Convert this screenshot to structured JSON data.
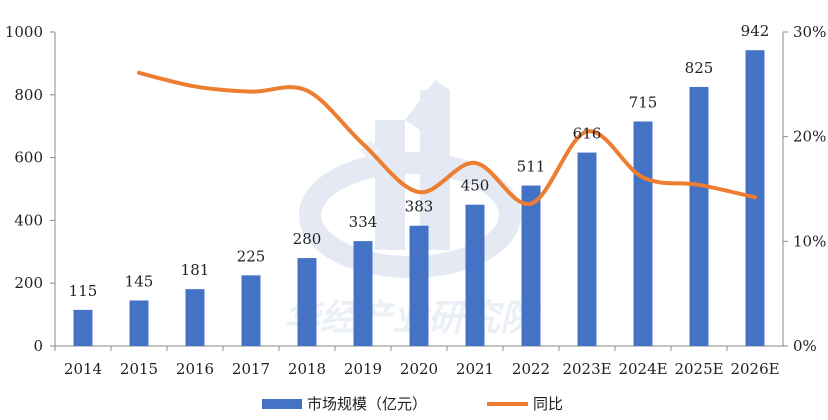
{
  "chart_data": {
    "type": "bar+line",
    "categories": [
      "2014",
      "2015",
      "2016",
      "2017",
      "2018",
      "2019",
      "2020",
      "2021",
      "2022",
      "2023E",
      "2024E",
      "2025E",
      "2026E"
    ],
    "series": [
      {
        "name": "市场规模（亿元）",
        "type": "bar",
        "axis": "left",
        "color": "#4472C4",
        "values": [
          115,
          145,
          181,
          225,
          280,
          334,
          383,
          450,
          511,
          616,
          715,
          825,
          942
        ]
      },
      {
        "name": "同比",
        "type": "line",
        "axis": "right",
        "color": "#ED7D31",
        "values": [
          null,
          26.1,
          24.8,
          24.3,
          24.4,
          19.3,
          14.7,
          17.5,
          13.6,
          20.5,
          16.1,
          15.4,
          14.2
        ]
      }
    ],
    "left_axis": {
      "min": 0,
      "max": 1000,
      "ticks": [
        0,
        200,
        400,
        600,
        800,
        1000
      ]
    },
    "right_axis": {
      "min": 0,
      "max": 30,
      "ticks": [
        "0%",
        "10%",
        "20%",
        "30%"
      ],
      "tick_values": [
        0,
        10,
        20,
        30
      ]
    },
    "grid": false,
    "legend": "bottom-center",
    "watermark": "华经产业研究院"
  }
}
